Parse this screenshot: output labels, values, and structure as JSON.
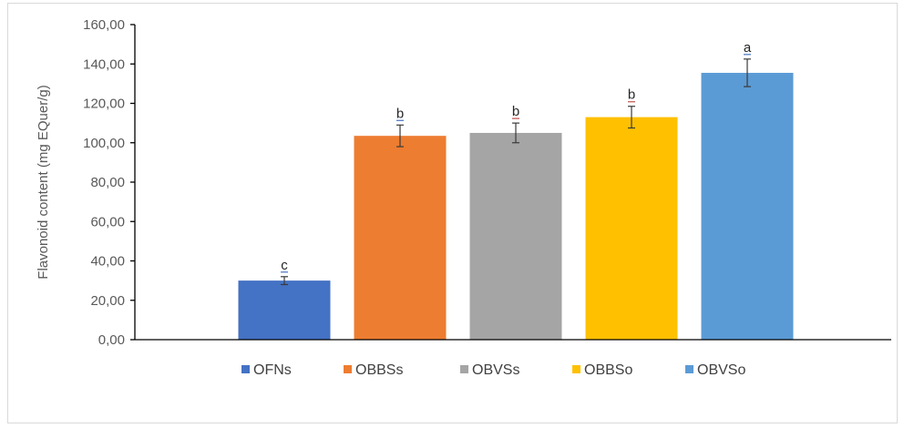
{
  "chart_data": {
    "type": "bar",
    "ylabel": "Flavonoid content (mg EQuer/g)",
    "xlabel": "",
    "ylim": [
      0,
      160
    ],
    "yticks": [
      "0,00",
      "20,00",
      "40,00",
      "60,00",
      "80,00",
      "100,00",
      "120,00",
      "140,00",
      "160,00"
    ],
    "grid": false,
    "legend_position": "bottom",
    "series": [
      {
        "name": "OFNs",
        "value": 30,
        "error": 2,
        "letter": "c",
        "color": "#4472C4"
      },
      {
        "name": "OBBSs",
        "value": 103.5,
        "error": 5.5,
        "letter": "b",
        "color": "#ED7D31"
      },
      {
        "name": "OBVSs",
        "value": 105,
        "error": 5,
        "letter": "b",
        "color": "#A5A5A5"
      },
      {
        "name": "OBBSo",
        "value": 113,
        "error": 5.5,
        "letter": "b",
        "color": "#FFC000"
      },
      {
        "name": "OBVSo",
        "value": 135.5,
        "error": 7,
        "letter": "a",
        "color": "#5B9BD5"
      }
    ]
  }
}
